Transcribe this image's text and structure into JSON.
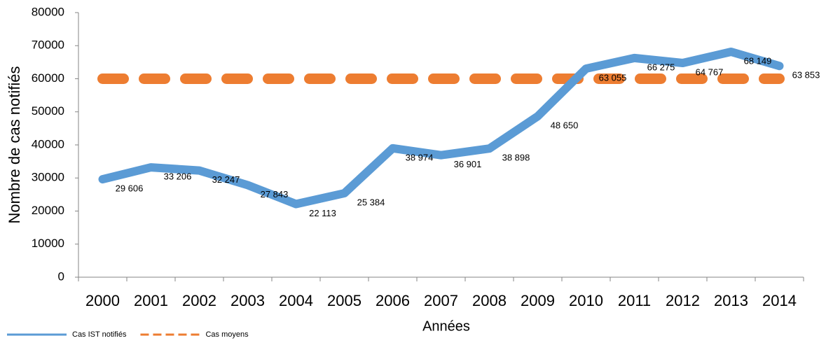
{
  "chart_data": {
    "type": "line",
    "y_label": "Nombre de cas notifiés",
    "x_label": "Années",
    "categories": [
      "2000",
      "2001",
      "2002",
      "2003",
      "2004",
      "2005",
      "2006",
      "2007",
      "2008",
      "2009",
      "2010",
      "2011",
      "2012",
      "2013",
      "2014"
    ],
    "series": [
      {
        "name": "Cas IST notifiés",
        "color": "#5b9bd5",
        "dashed": false,
        "values": [
          29606,
          33206,
          32247,
          27843,
          22113,
          25384,
          38974,
          36901,
          38898,
          48650,
          63055,
          66275,
          64767,
          68149,
          63853
        ],
        "value_labels": [
          "29 606",
          "33 206",
          "32 247",
          "27 843",
          "22 113",
          "25 384",
          "38 974",
          "36 901",
          "38 898",
          "48 650",
          "63 055",
          "66 275",
          "64 767",
          "68 149",
          "63 853"
        ]
      },
      {
        "name": "Cas moyens",
        "color": "#ed7d31",
        "dashed": true,
        "values": [
          60000,
          60000,
          60000,
          60000,
          60000,
          60000,
          60000,
          60000,
          60000,
          60000,
          60000,
          60000,
          60000,
          60000,
          60000
        ]
      }
    ],
    "ylim": [
      0,
      80000
    ],
    "yticks": [
      0,
      10000,
      20000,
      30000,
      40000,
      50000,
      60000,
      70000,
      80000
    ],
    "legend": "bottom-left"
  }
}
